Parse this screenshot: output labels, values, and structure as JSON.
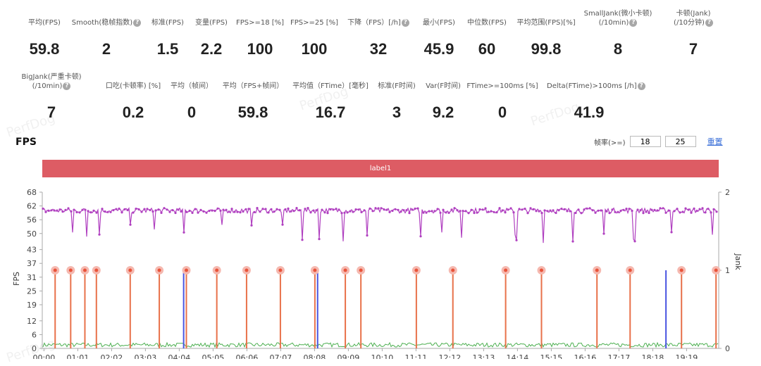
{
  "watermark": "PerfDog",
  "metrics_row1": [
    {
      "label": "平均(FPS)",
      "value": "59.8",
      "help": false
    },
    {
      "label": "Smooth(稳帧指数)",
      "value": "2",
      "help": true
    },
    {
      "label": "标准(FPS)",
      "value": "1.5",
      "help": false
    },
    {
      "label": "变量(FPS)",
      "value": "2.2",
      "help": false
    },
    {
      "label": "FPS>=18 [%]",
      "value": "100",
      "help": false
    },
    {
      "label": "FPS>=25 [%]",
      "value": "100",
      "help": false
    },
    {
      "label": "下降（FPS）[/h]",
      "value": "32",
      "help": true
    },
    {
      "label": "最小(FPS)",
      "value": "45.9",
      "help": false
    },
    {
      "label": "中位数(FPS)",
      "value": "60",
      "help": false
    },
    {
      "label": "平均范围(FPS)[%]",
      "value": "99.8",
      "help": false
    },
    {
      "label": "SmallJank(微小卡顿)",
      "label2": "(/10min)",
      "value": "8",
      "help": true
    },
    {
      "label": "卡顿(Jank)",
      "label2": "(/10分钟)",
      "value": "7",
      "help": true
    }
  ],
  "metrics_row2": [
    {
      "label": "BigJank(严重卡顿)",
      "label2": "(/10min)",
      "value": "7",
      "help": true
    },
    {
      "label": "口吃(卡顿率) [%]",
      "value": "0.2",
      "help": false
    },
    {
      "label": "平均（帧间）",
      "value": "0",
      "help": false
    },
    {
      "label": "平均（FPS+帧间）",
      "value": "59.8",
      "help": false
    },
    {
      "label": "平均值（FTime）[毫秒]",
      "value": "16.7",
      "help": false
    },
    {
      "label": "标准(F时间)",
      "value": "3",
      "help": false
    },
    {
      "label": "Var(F时间)",
      "value": "9.2",
      "help": false
    },
    {
      "label": "FTime>=100ms [%]",
      "value": "0",
      "help": false
    },
    {
      "label": "Delta(FTime)>100ms [/h]",
      "value": "41.9",
      "help": true
    }
  ],
  "help_glyph": "?",
  "fps_section": {
    "title": "FPS",
    "threshold_label": "帧率(>=)",
    "threshold_1": "18",
    "threshold_2": "25",
    "reset_label": "重置"
  },
  "label_bar": "label1",
  "chart_data": {
    "type": "line",
    "y_left": {
      "label": "FPS",
      "ticks": [
        68,
        62,
        56,
        50,
        43,
        37,
        31,
        25,
        19,
        12,
        6,
        0
      ],
      "range": [
        0,
        68
      ]
    },
    "y_right": {
      "label": "Jank",
      "ticks": [
        2,
        1,
        0
      ],
      "range": [
        0,
        2
      ]
    },
    "x_ticks": [
      "00:00",
      "01:01",
      "02:02",
      "03:03",
      "04:04",
      "05:05",
      "06:06",
      "07:07",
      "08:08",
      "09:09",
      "10:10",
      "11:11",
      "12:12",
      "13:13",
      "14:14",
      "15:15",
      "16:16",
      "17:17",
      "18:18",
      "19:19"
    ],
    "fps_baseline": 60,
    "fps_min": 45.9,
    "jank_positions": [
      0.019,
      0.042,
      0.063,
      0.08,
      0.13,
      0.173,
      0.213,
      0.258,
      0.302,
      0.352,
      0.403,
      0.448,
      0.471,
      0.553,
      0.607,
      0.685,
      0.738,
      0.82,
      0.869,
      0.945,
      0.996
    ],
    "bigjank_positions": [
      0.209,
      0.407,
      0.922
    ],
    "series_colors": {
      "fps": "#b040c0",
      "jank": "#e8714a",
      "bigjank": "#4a55e0",
      "ftime": "#4caf50",
      "jank_marker": "#e8533a",
      "jank_marker_halo": "#f5b9b0"
    }
  }
}
